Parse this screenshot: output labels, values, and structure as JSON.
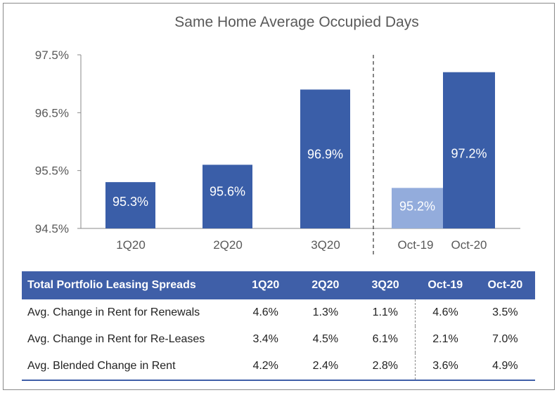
{
  "chart_data": {
    "type": "bar",
    "title": "Same Home Average Occupied Days",
    "categories": [
      "1Q20",
      "2Q20",
      "3Q20",
      "Oct-19",
      "Oct-20"
    ],
    "values": [
      95.3,
      95.6,
      96.9,
      95.2,
      97.2
    ],
    "data_labels": [
      "95.3%",
      "95.6%",
      "96.9%",
      "95.2%",
      "97.2%"
    ],
    "yticks": [
      "94.5%",
      "95.5%",
      "96.5%",
      "97.5%"
    ],
    "ylim": [
      94.5,
      97.5
    ],
    "colors": [
      "#3a5ea8",
      "#3a5ea8",
      "#3a5ea8",
      "#93acdc",
      "#3a5ea8"
    ],
    "grid": false,
    "divider_between": [
      "3Q20",
      "Oct-19"
    ]
  },
  "table": {
    "header": [
      "Total Portfolio Leasing Spreads",
      "1Q20",
      "2Q20",
      "3Q20",
      "Oct-19",
      "Oct-20"
    ],
    "rows": [
      [
        "Avg. Change in Rent for Renewals",
        "4.6%",
        "1.3%",
        "1.1%",
        "4.6%",
        "3.5%"
      ],
      [
        "Avg. Change in Rent for Re-Leases",
        "3.4%",
        "4.5%",
        "6.1%",
        "2.1%",
        "7.0%"
      ],
      [
        "Avg. Blended Change in Rent",
        "4.2%",
        "2.4%",
        "2.8%",
        "3.6%",
        "4.9%"
      ]
    ],
    "header_color": "#3f5fa8"
  }
}
